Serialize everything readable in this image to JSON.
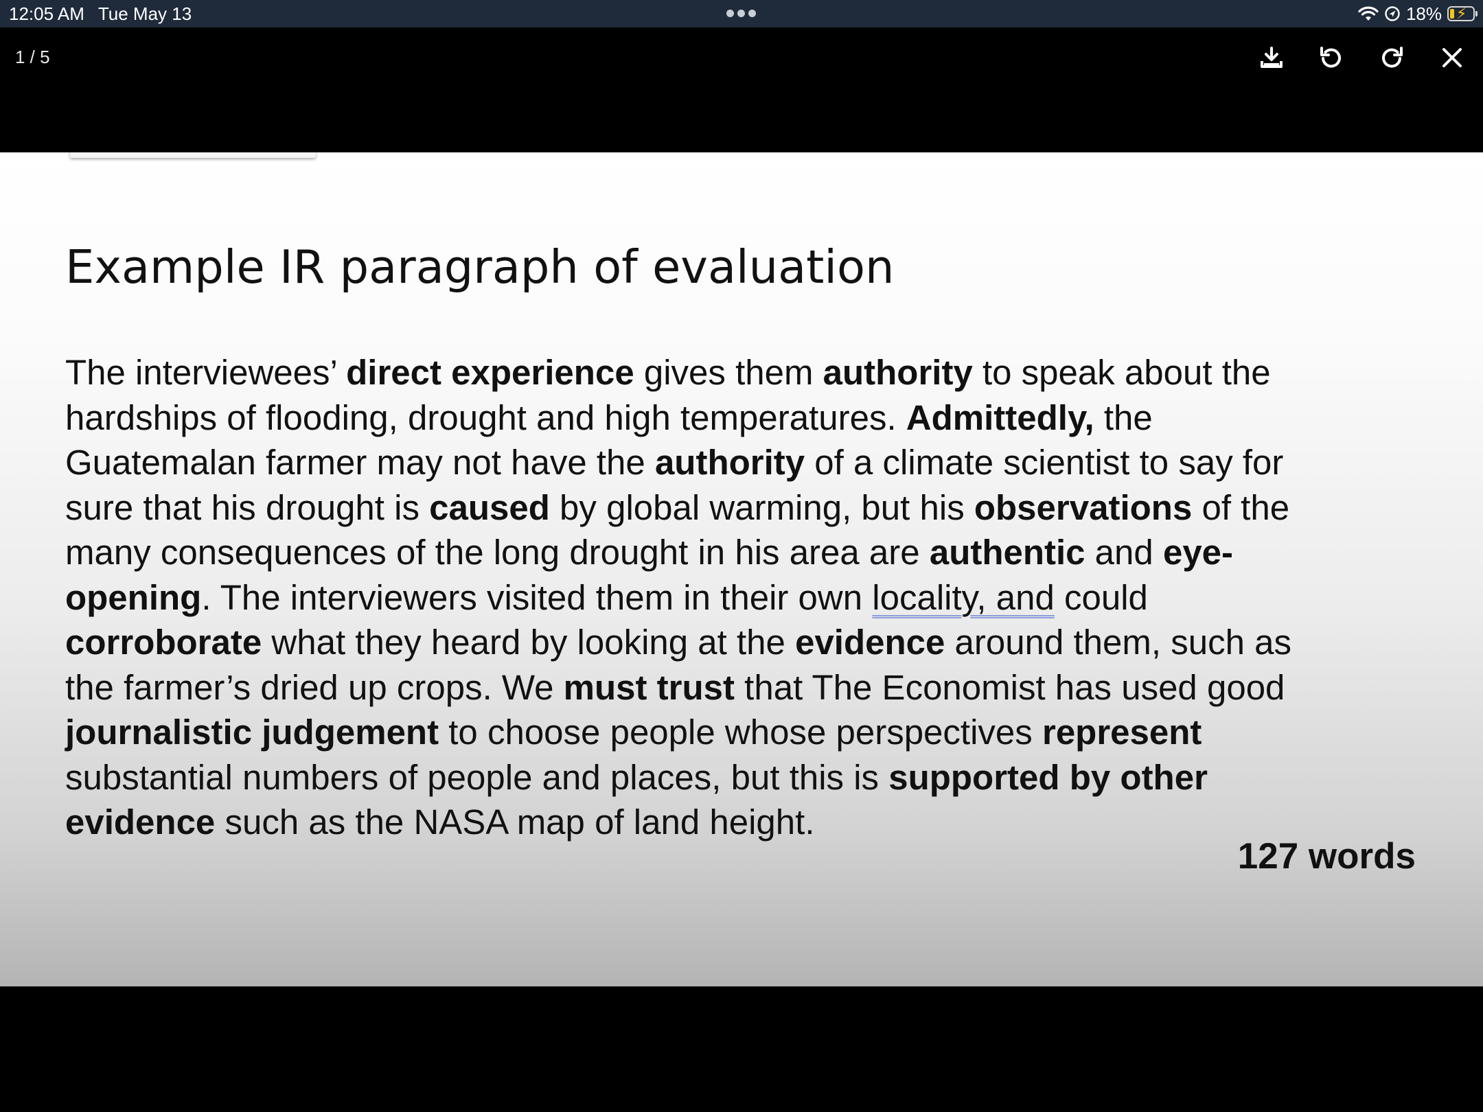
{
  "status_bar": {
    "time": "12:05 AM",
    "date": "Tue May 13",
    "battery_percent": "18%",
    "battery_level": 0.18,
    "icons": [
      "wifi-icon",
      "location-icon",
      "battery-charging-icon"
    ],
    "multitask_icon": "ellipsis-icon"
  },
  "toolbar": {
    "page_counter": "1 / 5",
    "buttons": [
      {
        "name": "download",
        "icon": "download-icon"
      },
      {
        "name": "rotate-left",
        "icon": "rotate-left-icon"
      },
      {
        "name": "rotate-right",
        "icon": "rotate-right-icon"
      },
      {
        "name": "close",
        "icon": "close-icon"
      }
    ]
  },
  "slide": {
    "title": "Example IR paragraph of evaluation",
    "lines": [
      [
        {
          "t": "The interviewees’ ",
          "b": false
        },
        {
          "t": "direct experience",
          "b": true
        },
        {
          "t": " gives them ",
          "b": false
        },
        {
          "t": "authority",
          "b": true
        },
        {
          "t": " to speak about the",
          "b": false
        }
      ],
      [
        {
          "t": "hardships of flooding, drought and high temperatures. ",
          "b": false
        },
        {
          "t": "Admittedly,",
          "b": true
        },
        {
          "t": " the",
          "b": false
        }
      ],
      [
        {
          "t": "Guatemalan farmer may not have the ",
          "b": false
        },
        {
          "t": "authority",
          "b": true
        },
        {
          "t": " of a climate scientist to say for",
          "b": false
        }
      ],
      [
        {
          "t": "sure that his drought is ",
          "b": false
        },
        {
          "t": "caused",
          "b": true
        },
        {
          "t": " by global warming, but his ",
          "b": false
        },
        {
          "t": "observations",
          "b": true
        },
        {
          "t": " of the",
          "b": false
        }
      ],
      [
        {
          "t": "many consequences of the long drought in his area are ",
          "b": false
        },
        {
          "t": "authentic",
          "b": true
        },
        {
          "t": " and ",
          "b": false
        },
        {
          "t": "eye-",
          "b": true
        }
      ],
      [
        {
          "t": "opening",
          "b": true
        },
        {
          "t": ". The interviewers visited them in their own ",
          "b": false
        },
        {
          "t": "locality, and",
          "b": false,
          "u": true
        },
        {
          "t": " could",
          "b": false
        }
      ],
      [
        {
          "t": "corroborate",
          "b": true
        },
        {
          "t": " what they heard by looking at the ",
          "b": false
        },
        {
          "t": "evidence",
          "b": true
        },
        {
          "t": " around them, such as",
          "b": false
        }
      ],
      [
        {
          "t": "the farmer’s dried up crops. We ",
          "b": false
        },
        {
          "t": "must trust",
          "b": true
        },
        {
          "t": " that The Economist has used good",
          "b": false
        }
      ],
      [
        {
          "t": "journalistic judgement",
          "b": true
        },
        {
          "t": " to choose people whose perspectives ",
          "b": false
        },
        {
          "t": "represent",
          "b": true
        }
      ],
      [
        {
          "t": "substantial numbers of people and places, but this is ",
          "b": false
        },
        {
          "t": "supported by other",
          "b": true
        }
      ],
      [
        {
          "t": "evidence",
          "b": true
        },
        {
          "t": " such as the NASA map of land height.",
          "b": false
        }
      ]
    ],
    "word_count": "127 words"
  },
  "colors": {
    "status_bar_bg": "#1f2a3a",
    "viewer_bg": "#000000",
    "text": "#111111",
    "battery_fill": "#f5c518",
    "underline": "#8d9edb"
  }
}
